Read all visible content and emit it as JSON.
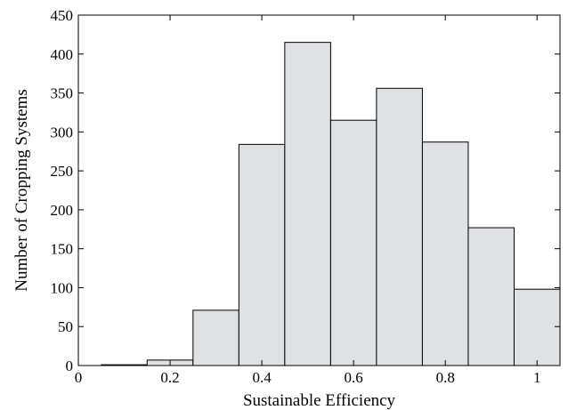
{
  "chart_data": {
    "type": "bar",
    "title": "",
    "xlabel": "Sustainable Efficiency",
    "ylabel": "Number of Cropping Systems",
    "bin_centers": [
      0.1,
      0.2,
      0.3,
      0.4,
      0.5,
      0.6,
      0.7,
      0.8,
      0.9,
      1.0
    ],
    "bin_width": 0.1,
    "values": [
      1,
      7,
      71,
      284,
      415,
      315,
      356,
      287,
      177,
      98
    ],
    "xlim": [
      0,
      1.05
    ],
    "ylim": [
      0,
      450
    ],
    "xticks": [
      0,
      0.2,
      0.4,
      0.6,
      0.8,
      1
    ],
    "xtick_labels": [
      "0",
      "0.2",
      "0.4",
      "0.6",
      "0.8",
      "1"
    ],
    "yticks": [
      0,
      50,
      100,
      150,
      200,
      250,
      300,
      350,
      400,
      450
    ],
    "ytick_labels": [
      "0",
      "50",
      "100",
      "150",
      "200",
      "250",
      "300",
      "350",
      "400",
      "450"
    ],
    "colors": {
      "bar_fill": "#e0e1e3",
      "bar_edge": "#000000"
    },
    "grid": false
  }
}
